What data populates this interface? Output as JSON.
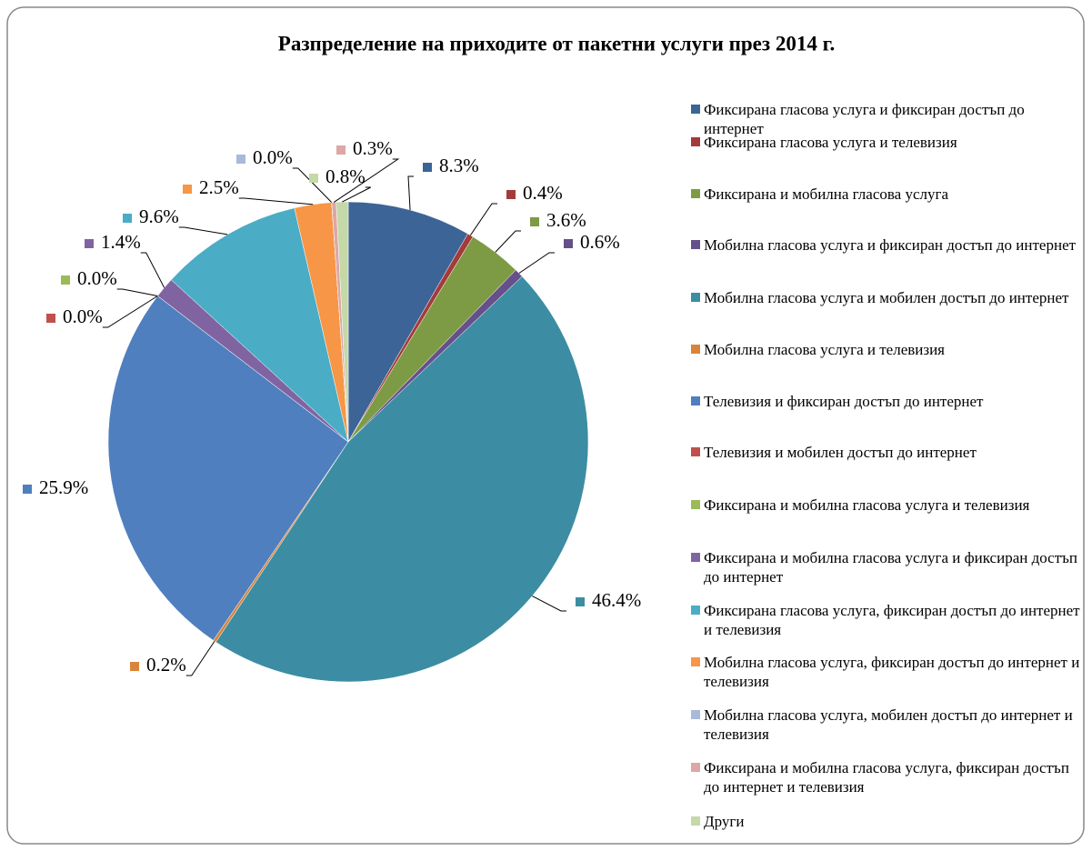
{
  "chart_data": {
    "type": "pie",
    "title": "Разпределение на приходите от пакетни услуги през 2014 г.",
    "categories": [
      "Фиксирана гласова услуга и фиксиран достъп до интернет",
      "Фиксирана гласова услуга и телевизия",
      "Фиксирана и мобилна гласова услуга",
      "Мобилна гласова услуга и фиксиран достъп до интернет",
      "Мобилна гласова услуга и мобилен достъп до интернет",
      "Мобилна гласова услуга и телевизия",
      "Телевизия и фиксиран достъп до интернет",
      "Телевизия и мобилен достъп до интернет",
      "Фиксирана и мобилна гласова услуга и телевизия",
      "Фиксирана и мобилна гласова услуга и фиксиран достъп до интернет",
      "Фиксирана гласова услуга, фиксиран достъп до интернет и телевизия",
      "Мобилна гласова услуга, фиксиран достъп до интернет и телевизия",
      "Мобилна гласова услуга, мобилен достъп до интернет и телевизия",
      "Фиксирана и мобилна гласова услуга, фиксиран достъп до интернет и телевизия",
      "Други"
    ],
    "values": [
      8.3,
      0.4,
      3.6,
      0.6,
      46.4,
      0.2,
      25.9,
      0.0,
      0.0,
      1.4,
      9.6,
      2.5,
      0.0,
      0.3,
      0.8
    ],
    "value_labels": [
      "8.3%",
      "0.4%",
      "3.6%",
      "0.6%",
      "46.4%",
      "0.2%",
      "25.9%",
      "0.0%",
      "0.0%",
      "1.4%",
      "9.6%",
      "2.5%",
      "0.0%",
      "0.3%",
      "0.8%"
    ],
    "colors": [
      "#3C6496",
      "#A33B3A",
      "#7D9B45",
      "#66508A",
      "#3C8DA3",
      "#D9843A",
      "#4F7FBE",
      "#C0504D",
      "#9BBB59",
      "#8064A2",
      "#4BACC6",
      "#F79646",
      "#A9B9DA",
      "#DDA7A6",
      "#C4D8A8"
    ],
    "legend": "right"
  }
}
